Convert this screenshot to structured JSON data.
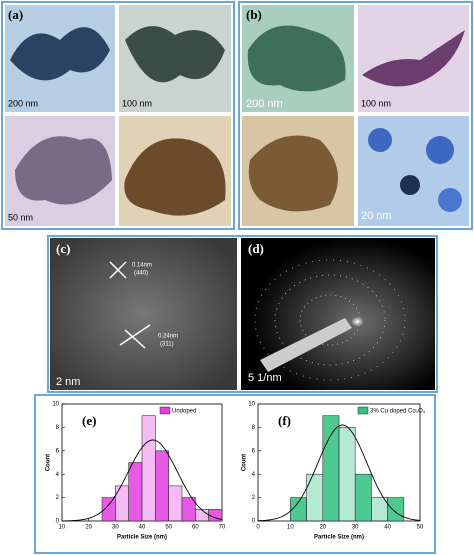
{
  "figure_a": {
    "label": "(a)",
    "scale_bars": [
      "200 nm",
      "100 nm",
      "50 nm"
    ]
  },
  "figure_b": {
    "label": "(b)",
    "scale_bars": [
      "200 nm",
      "100 nm",
      "20 nm"
    ]
  },
  "figure_c": {
    "label": "(c)",
    "annotations": [
      "0.14nm",
      "(440)",
      "0.24nm",
      "(311)"
    ],
    "scale_bar": "2 nm"
  },
  "figure_d": {
    "label": "(d)",
    "scale_bar": "5 1/nm"
  },
  "chart_data": [
    {
      "type": "histogram",
      "title": "(e)",
      "x_label": "Particle Size (nm)",
      "y_label": "Count",
      "bins": [
        25,
        30,
        35,
        40,
        45,
        50,
        55,
        60,
        65,
        70
      ],
      "series": [
        {
          "name": "Undoped",
          "color": "#e23de0",
          "values": [
            2,
            3,
            5,
            9,
            6,
            3,
            2,
            1,
            1
          ]
        }
      ],
      "xlim": [
        10,
        70
      ],
      "xticks": [
        10,
        20,
        30,
        40,
        50,
        60,
        70
      ],
      "ylim": [
        0,
        10
      ],
      "yticks": [
        0,
        2,
        4,
        6,
        8,
        10
      ],
      "fit_curve": true
    },
    {
      "type": "histogram",
      "title": "(f)",
      "x_label": "Particle Size (nm)",
      "y_label": "Count",
      "bins": [
        10,
        15,
        20,
        25,
        30,
        35,
        40,
        45
      ],
      "series": [
        {
          "name": "3% Cu doped Co₃O₄",
          "color": "#2fbf7f",
          "values": [
            2,
            4,
            9,
            8,
            4,
            2,
            2
          ]
        }
      ],
      "xlim": [
        0,
        50
      ],
      "xticks": [
        0,
        10,
        20,
        30,
        40,
        50
      ],
      "ylim": [
        0,
        10
      ],
      "yticks": [
        0,
        2,
        4,
        6,
        8,
        10
      ],
      "fit_curve": true
    }
  ]
}
